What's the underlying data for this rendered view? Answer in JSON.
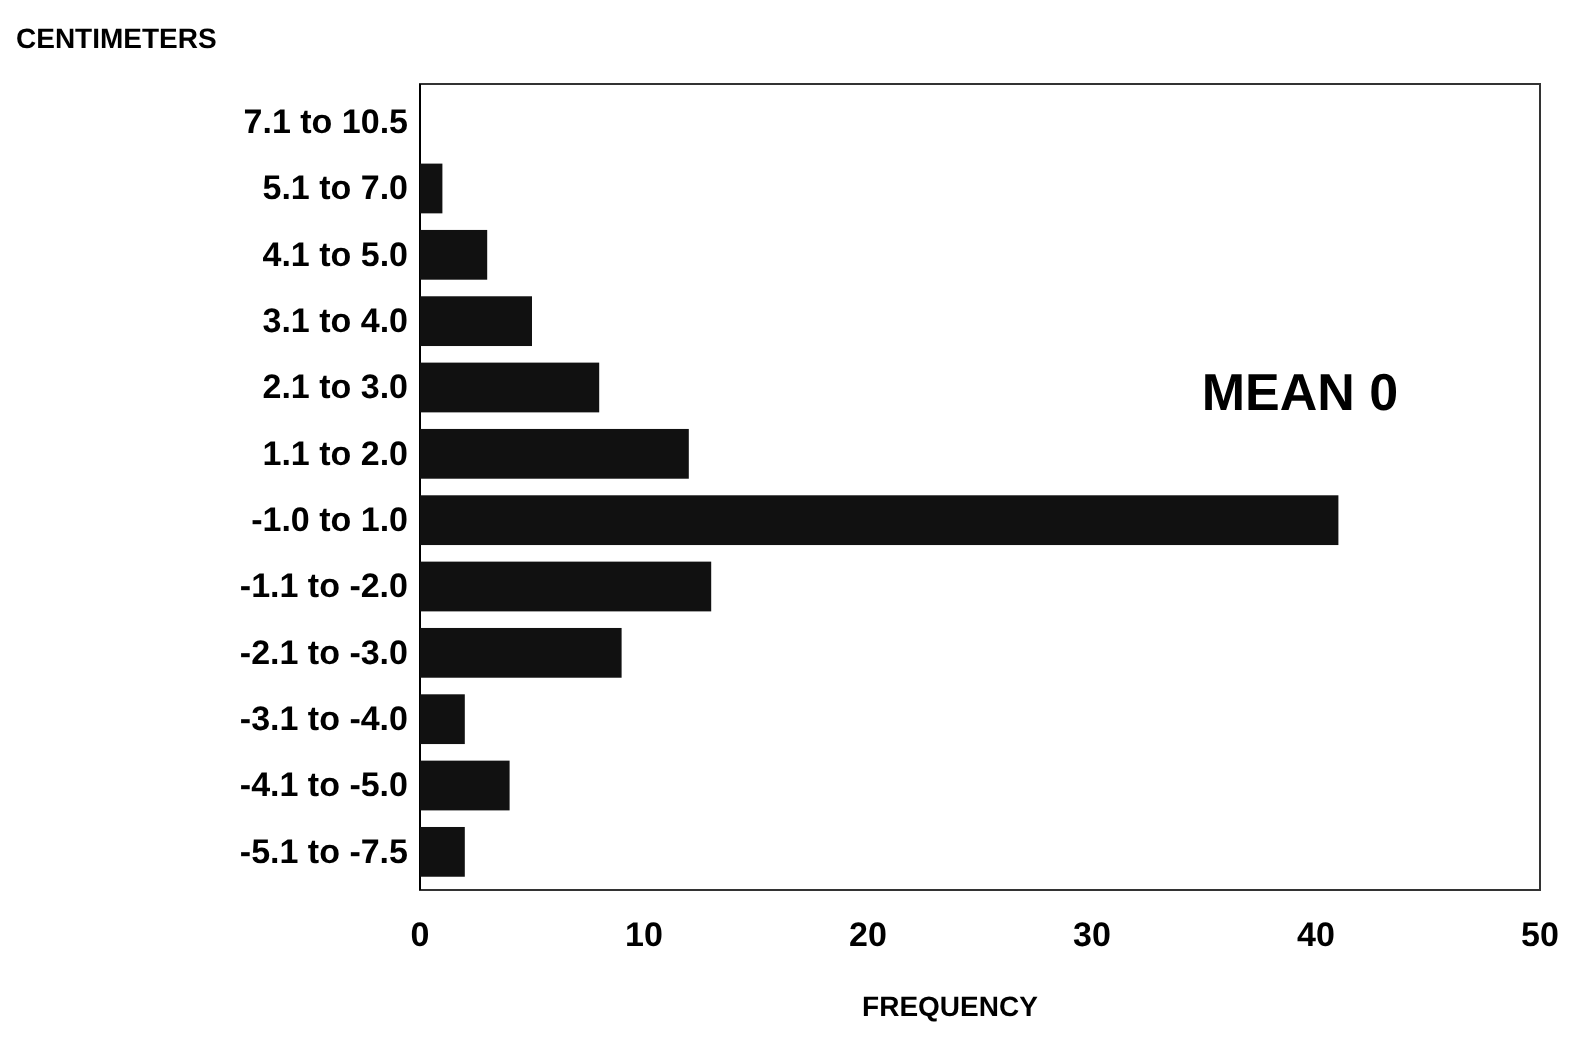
{
  "chart_data": {
    "type": "bar",
    "orientation": "horizontal",
    "ylabel": "CENTIMETERS",
    "xlabel": "FREQUENCY",
    "categories": [
      "7.1 to 10.5",
      "5.1 to 7.0",
      "4.1 to 5.0",
      "3.1 to 4.0",
      "2.1 to 3.0",
      "1.1 to 2.0",
      "-1.0 to 1.0",
      "-1.1 to -2.0",
      "-2.1 to -3.0",
      "-3.1 to -4.0",
      "-4.1 to -5.0",
      "-5.1 to -7.5"
    ],
    "values": [
      0,
      1,
      3,
      5,
      8,
      12,
      41,
      13,
      9,
      2,
      4,
      2
    ],
    "color": "#111111",
    "xlim": [
      0,
      50
    ],
    "xticks": [
      0,
      10,
      20,
      30,
      40,
      50
    ],
    "grid": false,
    "annotations": [
      "MEAN 0"
    ]
  }
}
